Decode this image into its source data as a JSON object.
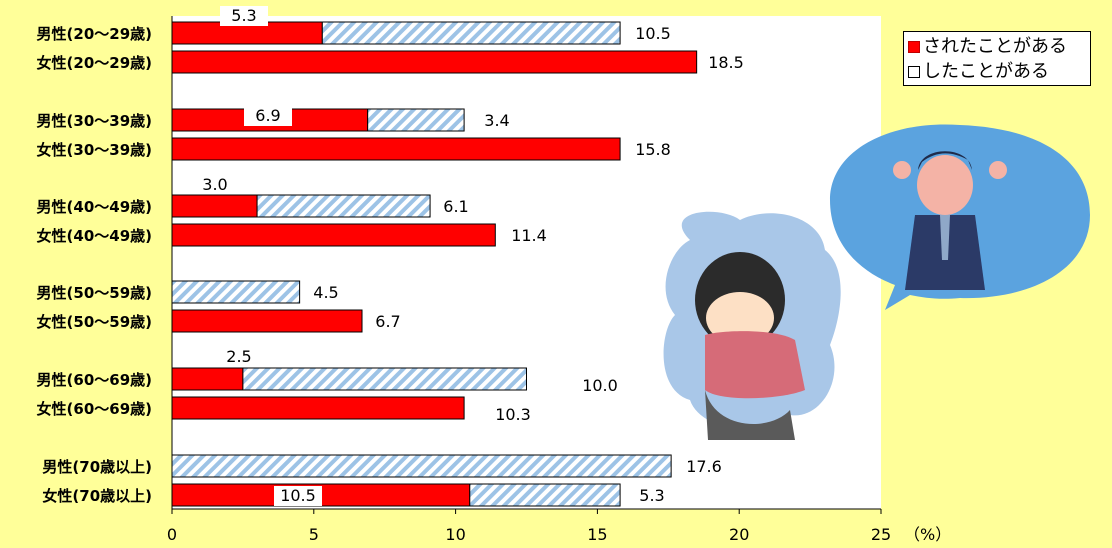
{
  "chart_data": {
    "type": "bar",
    "orientation": "horizontal",
    "stacked": true,
    "categories": [
      "男性(20～29歳)",
      "女性(20～29歳)",
      "男性(30～39歳)",
      "女性(30～39歳)",
      "男性(40～49歳)",
      "女性(40～49歳)",
      "男性(50～59歳)",
      "女性(50～59歳)",
      "男性(60～69歳)",
      "女性(60～69歳)",
      "男性(70歳以上)",
      "女性(70歳以上)"
    ],
    "series": [
      {
        "name": "されたことがある",
        "color": "#FF0000",
        "values": [
          5.3,
          18.5,
          6.9,
          15.8,
          3.0,
          11.4,
          null,
          6.7,
          2.5,
          10.3,
          null,
          10.5
        ]
      },
      {
        "name": "したことがある",
        "color": "#9DC3E6",
        "pattern": "diagonal-stripes",
        "values": [
          10.5,
          null,
          3.4,
          null,
          6.1,
          null,
          4.5,
          null,
          10.0,
          null,
          17.6,
          5.3
        ]
      }
    ],
    "xlim": [
      0,
      25
    ],
    "xticks": [
      "0",
      "5",
      "10",
      "15",
      "20",
      "25"
    ],
    "xunit": "（%）",
    "grid": false,
    "legend_position": "top-right"
  },
  "legend": {
    "items": [
      "されたことがある",
      "したことがある"
    ]
  }
}
